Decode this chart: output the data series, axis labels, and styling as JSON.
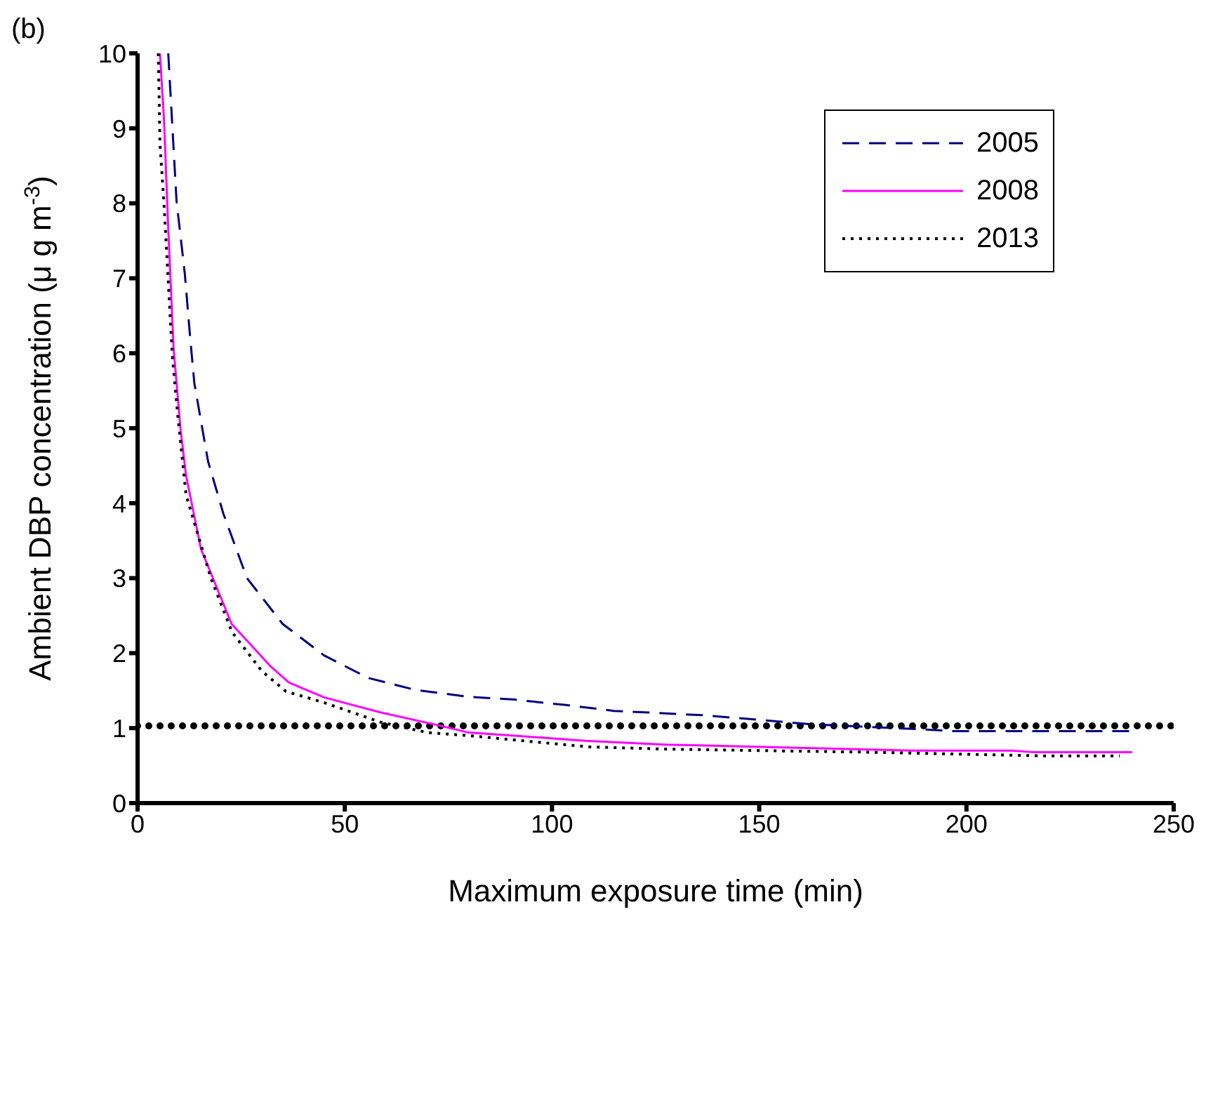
{
  "chart_data": {
    "type": "line",
    "xlabel": "Maximum exposure time (min)",
    "ylabel": "Ambient DBP concentration (μ g m$^{-3}$)",
    "xlim": [
      0,
      250
    ],
    "xticks": [
      0,
      50,
      100,
      150,
      200,
      250
    ],
    "ylim": [
      0,
      10
    ],
    "yticks": [
      0,
      1,
      2,
      3,
      4,
      5,
      6,
      7,
      8,
      9,
      10
    ],
    "grid": false,
    "legend": "top right",
    "marker": "none",
    "annotations": [
      "(b)"
    ],
    "ref_lines": [
      {
        "axis": "y",
        "value": 1.03,
        "color": "#000000",
        "line_style": "dotted"
      }
    ],
    "series": [
      {
        "name": "2005",
        "color": "#000080",
        "line_style": "dashed",
        "x": [
          7.4,
          9.4,
          11.4,
          12.7,
          13.7,
          17,
          20.7,
          26.4,
          35,
          45,
          55.6,
          67,
          79.6,
          91,
          103,
          115,
          137,
          163,
          187,
          197,
          240
        ],
        "values": [
          10,
          8.03,
          7.06,
          6.2,
          5.6,
          4.56,
          3.86,
          3.0,
          2.39,
          1.97,
          1.67,
          1.51,
          1.42,
          1.38,
          1.31,
          1.23,
          1.17,
          1.05,
          0.99,
          0.96,
          0.96
        ]
      },
      {
        "name": "2008",
        "color": "#ff00ff",
        "line_style": "solid",
        "x": [
          5.4,
          6.4,
          7.3,
          8.7,
          10.4,
          11.7,
          15.3,
          22.7,
          32,
          36.5,
          45,
          58.6,
          71.6,
          80,
          91,
          108,
          127.5,
          151,
          187,
          211,
          216,
          240
        ],
        "values": [
          10,
          9.1,
          7.8,
          6.06,
          4.97,
          4.37,
          3.39,
          2.39,
          1.83,
          1.61,
          1.41,
          1.21,
          1.05,
          0.94,
          0.9,
          0.83,
          0.78,
          0.75,
          0.7,
          0.7,
          0.68,
          0.68
        ]
      },
      {
        "name": "2013",
        "color": "#000000",
        "line_style": "dotted",
        "x": [
          5,
          5.4,
          6.4,
          8.4,
          9.7,
          11.7,
          17.7,
          22.8,
          30,
          35.8,
          45,
          58.6,
          70,
          80,
          97,
          109,
          127.5,
          151,
          175,
          218,
          237
        ],
        "values": [
          10,
          8.8,
          7.97,
          5.95,
          5.17,
          4.11,
          3.0,
          2.28,
          1.76,
          1.49,
          1.34,
          1.08,
          0.94,
          0.9,
          0.81,
          0.75,
          0.72,
          0.7,
          0.68,
          0.63,
          0.63
        ]
      }
    ]
  }
}
